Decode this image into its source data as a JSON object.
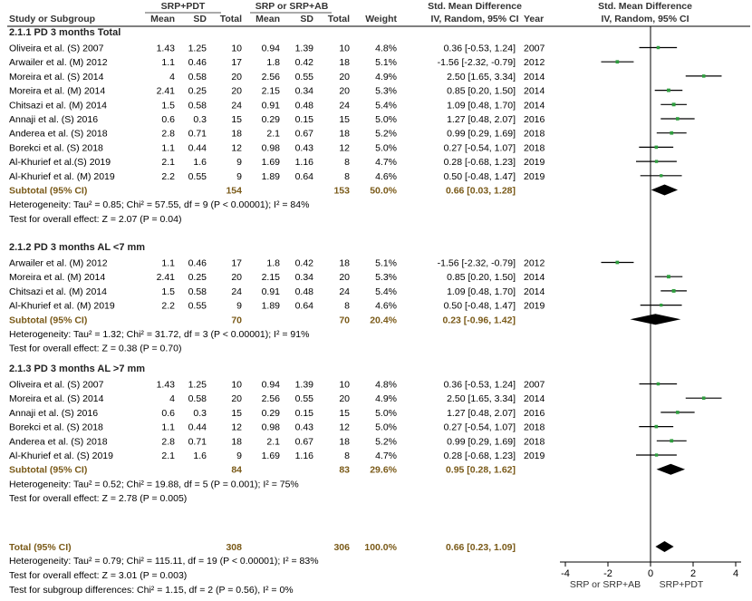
{
  "header": {
    "group1": "SRP+PDT",
    "group2": "SRP or SRP+AB",
    "smd_title": "Std. Mean Difference",
    "smd_sub": "IV, Random, 95% CI",
    "plot_title": "Std. Mean Difference",
    "plot_sub": "IV, Random, 95% CI",
    "col_study": "Study or Subgroup",
    "col_mean": "Mean",
    "col_sd": "SD",
    "col_total": "Total",
    "col_weight": "Weight",
    "col_year": "Year"
  },
  "chart_data": {
    "type": "forest",
    "axis": {
      "min": -4,
      "max": 4,
      "ticks": [
        -4,
        -2,
        0,
        2,
        4
      ],
      "tick_labels": [
        "-4",
        "-2",
        "0",
        "2",
        "4"
      ],
      "left_label": "SRP or SRP+AB",
      "right_label": "SRP+PDT"
    },
    "subgroups": [
      {
        "title": "2.1.1 PD 3 months Total",
        "studies": [
          {
            "study": "Oliveira et al. (S) 2007",
            "m1": "1.43",
            "sd1": "1.25",
            "n1": "10",
            "m2": "0.94",
            "sd2": "1.39",
            "n2": "10",
            "weight": "4.8%",
            "ci": "0.36 [-0.53, 1.24]",
            "year": "2007",
            "est": 0.36,
            "lo": -0.53,
            "hi": 1.24
          },
          {
            "study": "Arwailer et al. (M) 2012",
            "m1": "1.1",
            "sd1": "0.46",
            "n1": "17",
            "m2": "1.8",
            "sd2": "0.42",
            "n2": "18",
            "weight": "5.1%",
            "ci": "-1.56 [-2.32, -0.79]",
            "year": "2012",
            "est": -1.56,
            "lo": -2.32,
            "hi": -0.79
          },
          {
            "study": "Moreira et al. (S) 2014",
            "m1": "4",
            "sd1": "0.58",
            "n1": "20",
            "m2": "2.56",
            "sd2": "0.55",
            "n2": "20",
            "weight": "4.9%",
            "ci": "2.50 [1.65, 3.34]",
            "year": "2014",
            "est": 2.5,
            "lo": 1.65,
            "hi": 3.34
          },
          {
            "study": "Moreira et al. (M) 2014",
            "m1": "2.41",
            "sd1": "0.25",
            "n1": "20",
            "m2": "2.15",
            "sd2": "0.34",
            "n2": "20",
            "weight": "5.3%",
            "ci": "0.85 [0.20, 1.50]",
            "year": "2014",
            "est": 0.85,
            "lo": 0.2,
            "hi": 1.5
          },
          {
            "study": "Chitsazi et al. (M) 2014",
            "m1": "1.5",
            "sd1": "0.58",
            "n1": "24",
            "m2": "0.91",
            "sd2": "0.48",
            "n2": "24",
            "weight": "5.4%",
            "ci": "1.09 [0.48, 1.70]",
            "year": "2014",
            "est": 1.09,
            "lo": 0.48,
            "hi": 1.7
          },
          {
            "study": "Annaji et al. (S) 2016",
            "m1": "0.6",
            "sd1": "0.3",
            "n1": "15",
            "m2": "0.29",
            "sd2": "0.15",
            "n2": "15",
            "weight": "5.0%",
            "ci": "1.27 [0.48, 2.07]",
            "year": "2016",
            "est": 1.27,
            "lo": 0.48,
            "hi": 2.07
          },
          {
            "study": "Anderea et al. (S) 2018",
            "m1": "2.8",
            "sd1": "0.71",
            "n1": "18",
            "m2": "2.1",
            "sd2": "0.67",
            "n2": "18",
            "weight": "5.2%",
            "ci": "0.99 [0.29, 1.69]",
            "year": "2018",
            "est": 0.99,
            "lo": 0.29,
            "hi": 1.69
          },
          {
            "study": "Borekci et al. (S) 2018",
            "m1": "1.1",
            "sd1": "0.44",
            "n1": "12",
            "m2": "0.98",
            "sd2": "0.43",
            "n2": "12",
            "weight": "5.0%",
            "ci": "0.27 [-0.54, 1.07]",
            "year": "2018",
            "est": 0.27,
            "lo": -0.54,
            "hi": 1.07
          },
          {
            "study": "Al-Khurief et al.(S) 2019",
            "m1": "2.1",
            "sd1": "1.6",
            "n1": "9",
            "m2": "1.69",
            "sd2": "1.16",
            "n2": "8",
            "weight": "4.7%",
            "ci": "0.28 [-0.68, 1.23]",
            "year": "2019",
            "est": 0.28,
            "lo": -0.68,
            "hi": 1.23
          },
          {
            "study": "Al-Khurief et al. (M) 2019",
            "m1": "2.2",
            "sd1": "0.55",
            "n1": "9",
            "m2": "1.89",
            "sd2": "0.64",
            "n2": "8",
            "weight": "4.6%",
            "ci": "0.50 [-0.48, 1.47]",
            "year": "2019",
            "est": 0.5,
            "lo": -0.48,
            "hi": 1.47
          }
        ],
        "subtotal": {
          "label": "Subtotal (95% CI)",
          "n1": "154",
          "n2": "153",
          "weight": "50.0%",
          "ci": "0.66 [0.03, 1.28]",
          "est": 0.66,
          "lo": 0.03,
          "hi": 1.28
        },
        "heterogeneity": "Heterogeneity: Tau² = 0.85; Chi² = 57.55, df = 9 (P < 0.00001); I² = 84%",
        "overall_effect": "Test for overall effect: Z = 2.07 (P = 0.04)"
      },
      {
        "title": "2.1.2 PD 3 months AL <7 mm",
        "studies": [
          {
            "study": "Arwailer et al. (M) 2012",
            "m1": "1.1",
            "sd1": "0.46",
            "n1": "17",
            "m2": "1.8",
            "sd2": "0.42",
            "n2": "18",
            "weight": "5.1%",
            "ci": "-1.56 [-2.32, -0.79]",
            "year": "2012",
            "est": -1.56,
            "lo": -2.32,
            "hi": -0.79
          },
          {
            "study": "Moreira et al. (M) 2014",
            "m1": "2.41",
            "sd1": "0.25",
            "n1": "20",
            "m2": "2.15",
            "sd2": "0.34",
            "n2": "20",
            "weight": "5.3%",
            "ci": "0.85 [0.20, 1.50]",
            "year": "2014",
            "est": 0.85,
            "lo": 0.2,
            "hi": 1.5
          },
          {
            "study": "Chitsazi et al. (M) 2014",
            "m1": "1.5",
            "sd1": "0.58",
            "n1": "24",
            "m2": "0.91",
            "sd2": "0.48",
            "n2": "24",
            "weight": "5.4%",
            "ci": "1.09 [0.48, 1.70]",
            "year": "2014",
            "est": 1.09,
            "lo": 0.48,
            "hi": 1.7
          },
          {
            "study": "Al-Khurief et al. (M) 2019",
            "m1": "2.2",
            "sd1": "0.55",
            "n1": "9",
            "m2": "1.89",
            "sd2": "0.64",
            "n2": "8",
            "weight": "4.6%",
            "ci": "0.50 [-0.48, 1.47]",
            "year": "2019",
            "est": 0.5,
            "lo": -0.48,
            "hi": 1.47
          }
        ],
        "subtotal": {
          "label": "Subtotal (95% CI)",
          "n1": "70",
          "n2": "70",
          "weight": "20.4%",
          "ci": "0.23 [-0.96, 1.42]",
          "est": 0.23,
          "lo": -0.96,
          "hi": 1.42
        },
        "heterogeneity": "Heterogeneity: Tau² = 1.32; Chi² = 31.72, df = 3 (P < 0.00001); I² = 91%",
        "overall_effect": "Test for overall effect: Z = 0.38 (P = 0.70)"
      },
      {
        "title": "2.1.3 PD 3 months AL >7 mm",
        "studies": [
          {
            "study": "Oliveira et al. (S) 2007",
            "m1": "1.43",
            "sd1": "1.25",
            "n1": "10",
            "m2": "0.94",
            "sd2": "1.39",
            "n2": "10",
            "weight": "4.8%",
            "ci": "0.36 [-0.53, 1.24]",
            "year": "2007",
            "est": 0.36,
            "lo": -0.53,
            "hi": 1.24
          },
          {
            "study": "Moreira et al. (S) 2014",
            "m1": "4",
            "sd1": "0.58",
            "n1": "20",
            "m2": "2.56",
            "sd2": "0.55",
            "n2": "20",
            "weight": "4.9%",
            "ci": "2.50 [1.65, 3.34]",
            "year": "2014",
            "est": 2.5,
            "lo": 1.65,
            "hi": 3.34
          },
          {
            "study": "Annaji et al. (S) 2016",
            "m1": "0.6",
            "sd1": "0.3",
            "n1": "15",
            "m2": "0.29",
            "sd2": "0.15",
            "n2": "15",
            "weight": "5.0%",
            "ci": "1.27 [0.48, 2.07]",
            "year": "2016",
            "est": 1.27,
            "lo": 0.48,
            "hi": 2.07
          },
          {
            "study": "Borekci et al. (S) 2018",
            "m1": "1.1",
            "sd1": "0.44",
            "n1": "12",
            "m2": "0.98",
            "sd2": "0.43",
            "n2": "12",
            "weight": "5.0%",
            "ci": "0.27 [-0.54, 1.07]",
            "year": "2018",
            "est": 0.27,
            "lo": -0.54,
            "hi": 1.07
          },
          {
            "study": "Anderea et al. (S) 2018",
            "m1": "2.8",
            "sd1": "0.71",
            "n1": "18",
            "m2": "2.1",
            "sd2": "0.67",
            "n2": "18",
            "weight": "5.2%",
            "ci": "0.99 [0.29, 1.69]",
            "year": "2018",
            "est": 0.99,
            "lo": 0.29,
            "hi": 1.69
          },
          {
            "study": "Al-Khurief et al. (S) 2019",
            "m1": "2.1",
            "sd1": "1.6",
            "n1": "9",
            "m2": "1.69",
            "sd2": "1.16",
            "n2": "8",
            "weight": "4.7%",
            "ci": "0.28 [-0.68, 1.23]",
            "year": "2019",
            "est": 0.28,
            "lo": -0.68,
            "hi": 1.23
          }
        ],
        "subtotal": {
          "label": "Subtotal (95% CI)",
          "n1": "84",
          "n2": "83",
          "weight": "29.6%",
          "ci": "0.95 [0.28, 1.62]",
          "est": 0.95,
          "lo": 0.28,
          "hi": 1.62
        },
        "heterogeneity": "Heterogeneity: Tau² = 0.52; Chi² = 19.88, df = 5 (P = 0.001); I² = 75%",
        "overall_effect": "Test for overall effect: Z = 2.78 (P = 0.005)"
      }
    ],
    "total": {
      "label": "Total (95% CI)",
      "n1": "308",
      "n2": "306",
      "weight": "100.0%",
      "ci": "0.66 [0.23, 1.09]",
      "est": 0.66,
      "lo": 0.23,
      "hi": 1.09
    },
    "footer": [
      "Heterogeneity: Tau² = 0.79; Chi² = 115.11, df = 19 (P < 0.00001); I² = 83%",
      "Test for overall effect: Z = 3.01 (P = 0.003)",
      "Test for subgroup differences: Chi² = 1.15, df = 2 (P = 0.56), I² = 0%"
    ],
    "colors": {
      "marker": "#2e9e3e",
      "line": "#000000",
      "diamond": "#000000",
      "total_text": "#7a5a18"
    }
  }
}
